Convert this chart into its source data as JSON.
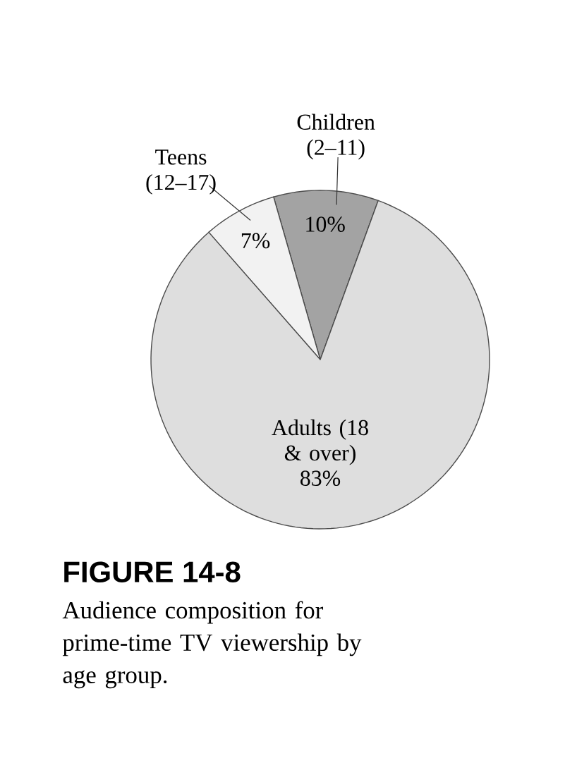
{
  "chart_data": {
    "type": "pie",
    "title": "FIGURE 14-8",
    "subtitle": "Audience composition for prime-time TV viewership by age group.",
    "categories": [
      "Children (2–11)",
      "Teens (12–17)",
      "Adults (18 & over)"
    ],
    "values": [
      10,
      7,
      83
    ],
    "value_labels": [
      "10%",
      "7%",
      "83%"
    ],
    "colors": [
      "#a3a3a3",
      "#f2f2f2",
      "#dedede"
    ]
  }
}
